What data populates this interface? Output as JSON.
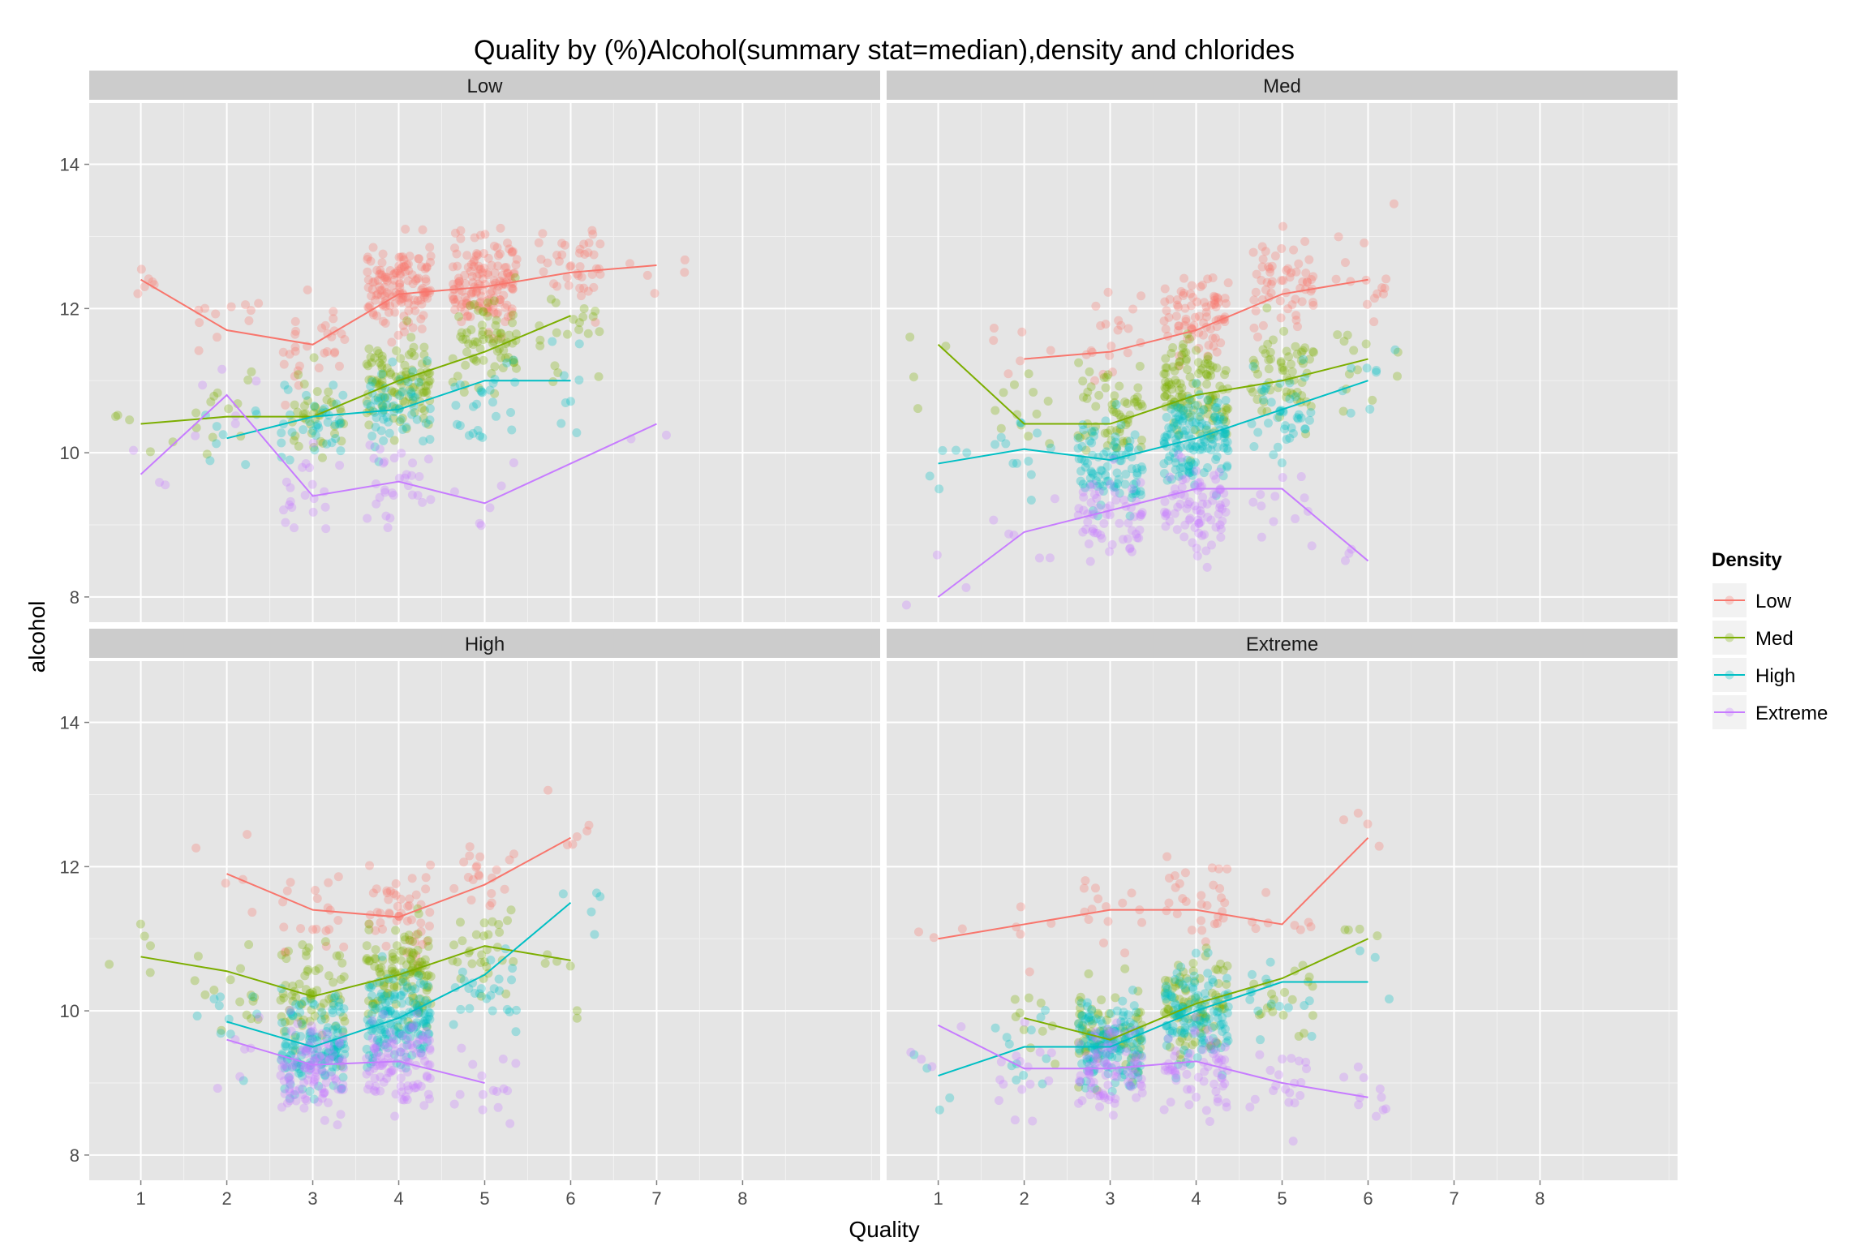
{
  "chart_data": {
    "type": "scatter",
    "title": "Quality by (%)Alcohol(summary stat=median),density and chlorides",
    "xlabel": "Quality",
    "ylabel": "alcohol",
    "x_ticks": [
      "1",
      "2",
      "3",
      "4",
      "5",
      "6",
      "7",
      "8"
    ],
    "y_ticks": [
      "8",
      "10",
      "12",
      "14"
    ],
    "xlim": [
      0.4,
      9.6
    ],
    "ylim": [
      7.65,
      14.85
    ],
    "grid": true,
    "legend": {
      "title": "Density",
      "position": "right",
      "entries": [
        "Low",
        "Med",
        "High",
        "Extreme"
      ]
    },
    "colors": {
      "Low": "#F8766D",
      "Med": "#7CAE00",
      "High": "#00BFC4",
      "Extreme": "#C77CFF",
      "panel_bg": "#E5E5E5",
      "strip_bg": "#CCCCCC",
      "grid": "#FFFFFF"
    },
    "facets": [
      {
        "label": "Low",
        "lines": {
          "Low": {
            "x": [
              1,
              2,
              3,
              4,
              5,
              6,
              7
            ],
            "y": [
              12.4,
              11.7,
              11.5,
              12.2,
              12.3,
              12.5,
              12.6
            ]
          },
          "Med": {
            "x": [
              1,
              2,
              3,
              4,
              5,
              6
            ],
            "y": [
              10.4,
              10.5,
              10.5,
              11.0,
              11.4,
              11.9
            ]
          },
          "High": {
            "x": [
              2,
              3,
              4,
              5,
              6
            ],
            "y": [
              10.2,
              10.5,
              10.6,
              11.0,
              11.0
            ]
          },
          "Extreme": {
            "x": [
              1,
              2,
              3,
              4,
              5,
              7
            ],
            "y": [
              9.7,
              10.8,
              9.4,
              9.6,
              9.3,
              10.4
            ]
          }
        },
        "points": {
          "Low": [
            [
              2,
              12.0,
              11
            ],
            [
              3,
              11.5,
              30
            ],
            [
              4,
              12.3,
              140
            ],
            [
              5,
              12.4,
              150
            ],
            [
              6,
              12.6,
              40
            ],
            [
              7,
              12.7,
              5
            ],
            [
              1,
              12.2,
              6
            ]
          ],
          "Med": [
            [
              1,
              10.4,
              5
            ],
            [
              2,
              10.6,
              12
            ],
            [
              3,
              10.5,
              40
            ],
            [
              4,
              11.0,
              110
            ],
            [
              5,
              11.5,
              70
            ],
            [
              6,
              11.8,
              20
            ]
          ],
          "High": [
            [
              2,
              10.2,
              8
            ],
            [
              3,
              10.4,
              35
            ],
            [
              4,
              10.6,
              55
            ],
            [
              5,
              10.9,
              25
            ],
            [
              6,
              11.0,
              8
            ]
          ],
          "Extreme": [
            [
              1,
              9.7,
              3
            ],
            [
              2,
              10.6,
              6
            ],
            [
              3,
              9.5,
              20
            ],
            [
              4,
              9.6,
              30
            ],
            [
              5,
              9.4,
              6
            ],
            [
              7,
              10.4,
              2
            ]
          ]
        }
      },
      {
        "label": "Med",
        "lines": {
          "Low": {
            "x": [
              2,
              3,
              4,
              5,
              6
            ],
            "y": [
              11.3,
              11.4,
              11.7,
              12.2,
              12.4
            ]
          },
          "Med": {
            "x": [
              1,
              2,
              3,
              4,
              5,
              6
            ],
            "y": [
              11.5,
              10.4,
              10.4,
              10.8,
              11.0,
              11.3
            ]
          },
          "High": {
            "x": [
              1,
              2,
              3,
              4,
              5,
              6
            ],
            "y": [
              9.85,
              10.05,
              9.9,
              10.2,
              10.6,
              11.0
            ]
          },
          "Extreme": {
            "x": [
              1,
              2,
              3,
              4,
              5,
              6
            ],
            "y": [
              8.0,
              8.9,
              9.2,
              9.5,
              9.5,
              8.5
            ]
          }
        },
        "points": {
          "Low": [
            [
              2,
              11.4,
              6
            ],
            [
              3,
              11.6,
              20
            ],
            [
              4,
              11.9,
              80
            ],
            [
              5,
              12.3,
              60
            ],
            [
              6,
              12.5,
              15
            ]
          ],
          "Med": [
            [
              1,
              11.2,
              4
            ],
            [
              2,
              10.6,
              12
            ],
            [
              3,
              10.5,
              60
            ],
            [
              4,
              10.9,
              120
            ],
            [
              5,
              11.1,
              60
            ],
            [
              6,
              11.2,
              12
            ]
          ],
          "High": [
            [
              1,
              9.7,
              5
            ],
            [
              2,
              10.0,
              12
            ],
            [
              3,
              9.8,
              90
            ],
            [
              4,
              10.2,
              140
            ],
            [
              5,
              10.6,
              40
            ],
            [
              6,
              10.9,
              8
            ]
          ],
          "Extreme": [
            [
              1,
              8.3,
              3
            ],
            [
              2,
              8.9,
              6
            ],
            [
              3,
              9.1,
              60
            ],
            [
              4,
              9.3,
              80
            ],
            [
              5,
              9.3,
              12
            ],
            [
              6,
              8.6,
              3
            ]
          ]
        }
      },
      {
        "label": "High",
        "lines": {
          "Low": {
            "x": [
              2,
              3,
              4,
              5,
              6
            ],
            "y": [
              11.9,
              11.4,
              11.3,
              11.75,
              12.4
            ]
          },
          "Med": {
            "x": [
              1,
              2,
              3,
              4,
              5,
              6
            ],
            "y": [
              10.75,
              10.55,
              10.2,
              10.5,
              10.9,
              10.7
            ]
          },
          "High": {
            "x": [
              2,
              3,
              4,
              5,
              6
            ],
            "y": [
              9.85,
              9.5,
              9.9,
              10.5,
              11.5
            ]
          },
          "Extreme": {
            "x": [
              2,
              3,
              4,
              5
            ],
            "y": [
              9.6,
              9.25,
              9.3,
              9.0
            ]
          }
        },
        "points": {
          "Low": [
            [
              2,
              11.8,
              5
            ],
            [
              3,
              11.3,
              20
            ],
            [
              4,
              11.4,
              50
            ],
            [
              5,
              11.8,
              20
            ],
            [
              6,
              12.5,
              6
            ]
          ],
          "Med": [
            [
              1,
              10.8,
              5
            ],
            [
              2,
              10.5,
              15
            ],
            [
              3,
              10.2,
              70
            ],
            [
              4,
              10.5,
              120
            ],
            [
              5,
              10.8,
              30
            ],
            [
              6,
              10.7,
              6
            ]
          ],
          "High": [
            [
              2,
              9.8,
              10
            ],
            [
              3,
              9.5,
              140
            ],
            [
              4,
              9.9,
              150
            ],
            [
              5,
              10.3,
              25
            ],
            [
              6,
              11.4,
              5
            ]
          ],
          "Extreme": [
            [
              2,
              9.4,
              6
            ],
            [
              3,
              9.2,
              100
            ],
            [
              4,
              9.3,
              100
            ],
            [
              5,
              9.0,
              15
            ]
          ]
        }
      },
      {
        "label": "Extreme",
        "lines": {
          "Low": {
            "x": [
              1,
              2,
              3,
              4,
              5,
              6
            ],
            "y": [
              11.0,
              11.2,
              11.4,
              11.4,
              11.2,
              12.4
            ]
          },
          "Med": {
            "x": [
              2,
              3,
              4,
              5,
              6
            ],
            "y": [
              9.9,
              9.6,
              10.1,
              10.45,
              11.0
            ]
          },
          "High": {
            "x": [
              1,
              2,
              3,
              4,
              5,
              6
            ],
            "y": [
              9.1,
              9.5,
              9.5,
              10.0,
              10.4,
              10.4
            ]
          },
          "Extreme": {
            "x": [
              1,
              2,
              3,
              4,
              5,
              6
            ],
            "y": [
              9.8,
              9.2,
              9.2,
              9.3,
              9.0,
              8.8
            ]
          }
        },
        "points": {
          "Low": [
            [
              1,
              11.0,
              3
            ],
            [
              2,
              11.3,
              5
            ],
            [
              3,
              11.5,
              15
            ],
            [
              4,
              11.6,
              30
            ],
            [
              5,
              11.3,
              8
            ],
            [
              6,
              12.3,
              4
            ]
          ],
          "Med": [
            [
              2,
              9.9,
              10
            ],
            [
              3,
              9.7,
              70
            ],
            [
              4,
              10.1,
              90
            ],
            [
              5,
              10.4,
              20
            ],
            [
              6,
              10.9,
              4
            ]
          ],
          "High": [
            [
              1,
              9.2,
              4
            ],
            [
              2,
              9.5,
              12
            ],
            [
              3,
              9.5,
              150
            ],
            [
              4,
              9.9,
              120
            ],
            [
              5,
              10.2,
              15
            ],
            [
              6,
              10.4,
              3
            ]
          ],
          "Extreme": [
            [
              1,
              9.6,
              4
            ],
            [
              2,
              9.2,
              15
            ],
            [
              3,
              9.2,
              80
            ],
            [
              4,
              9.2,
              60
            ],
            [
              5,
              9.0,
              20
            ],
            [
              6,
              8.8,
              10
            ]
          ]
        }
      }
    ]
  }
}
